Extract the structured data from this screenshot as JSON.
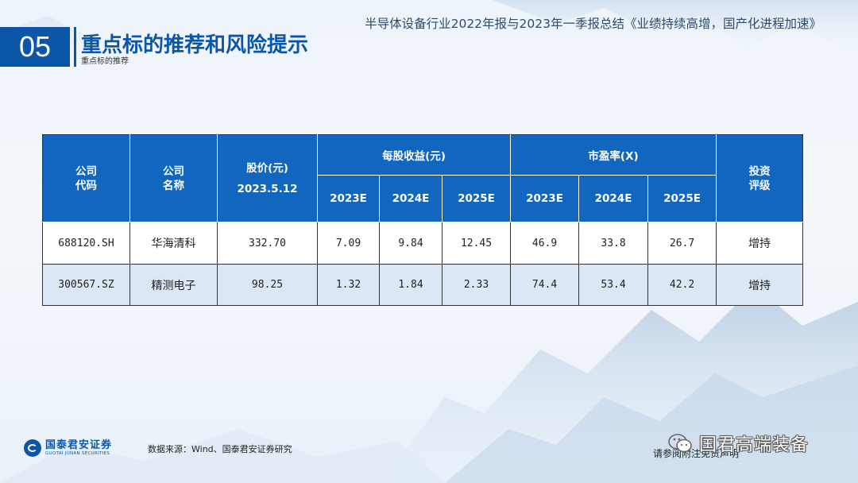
{
  "header": {
    "report_title": "半导体设备行业2022年报与2023年一季报总结《业绩持续高增，国产化进程加速》",
    "section_number": "05",
    "section_title": "重点标的推荐和风险提示",
    "section_subtitle": "重点标的推荐"
  },
  "table": {
    "headers": {
      "code": [
        "公司",
        "代码"
      ],
      "name": [
        "公司",
        "名称"
      ],
      "price": [
        "股价(元)",
        "2023.5.12"
      ],
      "eps_group": "每股收益(元)",
      "pe_group": "市盈率(X)",
      "rating": [
        "投资",
        "评级"
      ],
      "years": [
        "2023E",
        "2024E",
        "2025E"
      ]
    },
    "rows": [
      {
        "code": "688120.SH",
        "name": "华海清科",
        "price": "332.70",
        "eps": [
          "7.09",
          "9.84",
          "12.45"
        ],
        "pe": [
          "46.9",
          "33.8",
          "26.7"
        ],
        "rating": "增持"
      },
      {
        "code": "300567.SZ",
        "name": "精测电子",
        "price": "98.25",
        "eps": [
          "1.32",
          "1.84",
          "2.33"
        ],
        "pe": [
          "74.4",
          "53.4",
          "42.2"
        ],
        "rating": "增持"
      }
    ]
  },
  "footer": {
    "logo_cn": "国泰君安证券",
    "logo_en": "GUOTAI JUNAN SECURITIES",
    "source": "数据来源：Wind、国泰君安证券研究",
    "disclaimer": "请参阅附注免责声明",
    "watermark": "国君高端装备"
  },
  "colors": {
    "brand_blue": "#0c56a8",
    "header_blue": "#1167c0",
    "row_alt": "#dbe7f4"
  }
}
